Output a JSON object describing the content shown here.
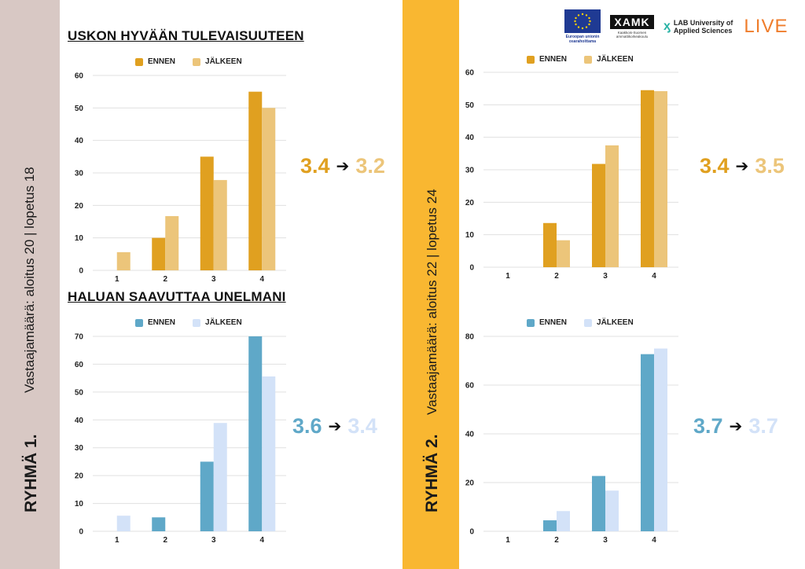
{
  "group1": {
    "title": "RYHMÄ 1.",
    "counts": "Vastaajamäärä: aloitus 20 | lopetus 18"
  },
  "group2": {
    "title": "RYHMÄ 2.",
    "counts": "Vastaajamäärä: aloitus 22 | lopetus 24"
  },
  "section_titles": {
    "top": "USKON HYVÄÄN TULEVAISUUTEEN",
    "bottom": "HALUAN SAAVUTTAA UNELMANI"
  },
  "logos": {
    "eu_caption": "Euroopan unionin osarahoittama",
    "xamk": "XAMK",
    "xamk_caption": "Kaakkois-Suomen ammattikorkeakoulu",
    "lab_line1": "LAB University of",
    "lab_line2": "Applied Sciences",
    "live": "LIVE"
  },
  "averages": {
    "g1_top": {
      "before": "3.4",
      "after": "3.2"
    },
    "g2_top": {
      "before": "3.4",
      "after": "3.5"
    },
    "g1_bottom": {
      "before": "3.6",
      "after": "3.4"
    },
    "g2_bottom": {
      "before": "3.7",
      "after": "3.7"
    },
    "arrow": "➔"
  },
  "colors": {
    "gold_before": "#e0a020",
    "gold_after": "#ecc57a",
    "blue_before": "#5fa8c8",
    "blue_after": "#d3e2f8",
    "grid": "#e0e0e0"
  },
  "chart_data": [
    {
      "id": "g1_top",
      "type": "bar",
      "title": "USKON HYVÄÄN TULEVAISUUTEEN",
      "categories": [
        "1",
        "2",
        "3",
        "4"
      ],
      "ylim": [
        0,
        60
      ],
      "yticks": [
        0,
        10,
        20,
        30,
        40,
        50,
        60
      ],
      "series": [
        {
          "name": "ENNEN",
          "values": [
            0,
            10,
            35,
            55
          ]
        },
        {
          "name": "JÄLKEEN",
          "values": [
            5.6,
            16.7,
            27.8,
            50
          ]
        }
      ]
    },
    {
      "id": "g2_top",
      "type": "bar",
      "title": "",
      "categories": [
        "1",
        "2",
        "3",
        "4"
      ],
      "ylim": [
        0,
        60
      ],
      "yticks": [
        0,
        10,
        20,
        30,
        40,
        50,
        60
      ],
      "series": [
        {
          "name": "ENNEN",
          "values": [
            0,
            13.6,
            31.8,
            54.5
          ]
        },
        {
          "name": "JÄLKEEN",
          "values": [
            0,
            8.3,
            37.5,
            54.2
          ]
        }
      ]
    },
    {
      "id": "g1_bottom",
      "type": "bar",
      "title": "HALUAN SAAVUTTAA UNELMANI",
      "categories": [
        "1",
        "2",
        "3",
        "4"
      ],
      "ylim": [
        0,
        70
      ],
      "yticks": [
        0,
        10,
        20,
        30,
        40,
        50,
        60,
        70
      ],
      "series": [
        {
          "name": "ENNEN",
          "values": [
            0,
            5,
            25,
            70
          ]
        },
        {
          "name": "JÄLKEEN",
          "values": [
            5.6,
            0,
            38.9,
            55.6
          ]
        }
      ]
    },
    {
      "id": "g2_bottom",
      "type": "bar",
      "title": "",
      "categories": [
        "1",
        "2",
        "3",
        "4"
      ],
      "ylim": [
        0,
        80
      ],
      "yticks": [
        0,
        20,
        40,
        60,
        80
      ],
      "series": [
        {
          "name": "ENNEN",
          "values": [
            0,
            4.5,
            22.7,
            72.7
          ]
        },
        {
          "name": "JÄLKEEN",
          "values": [
            0,
            8.3,
            16.7,
            75
          ]
        }
      ]
    }
  ]
}
